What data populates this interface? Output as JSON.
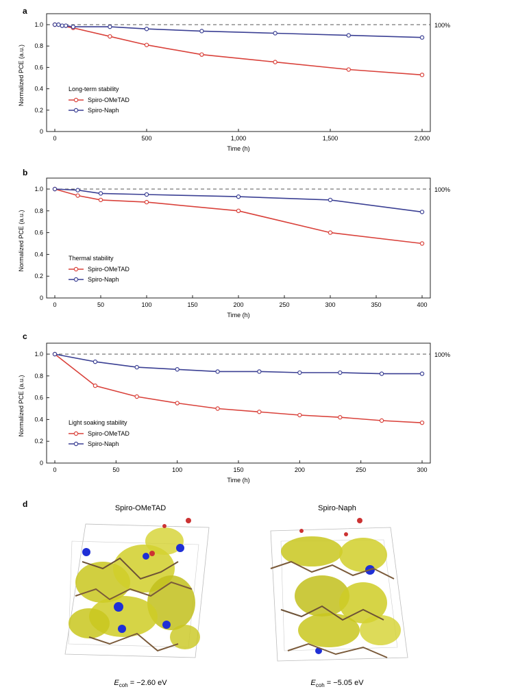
{
  "colors": {
    "spiro_ometad": "#d9413a",
    "spiro_naph": "#3a3f93",
    "axis": "#222222",
    "reference": "#555555",
    "isosurface": "#c9c71e",
    "iso_negative": "#1f2fd6"
  },
  "chart_data": [
    {
      "panel": "a",
      "type": "line",
      "legend_title": "Long-term stability",
      "legend_position": "middle-left",
      "xlabel": "Time (h)",
      "ylabel": "Normalized PCE (a.u.)",
      "xlim": [
        0,
        2000
      ],
      "ylim": [
        0,
        1.0
      ],
      "xticks": [
        0,
        500,
        1000,
        1500,
        2000
      ],
      "xtick_labels": [
        "0",
        "500",
        "1,000",
        "1,500",
        "2,000"
      ],
      "yticks": [
        0,
        0.2,
        0.4,
        0.6,
        0.8,
        1.0
      ],
      "ytick_labels": [
        "0",
        "0.2",
        "0.4",
        "0.6",
        "0.8",
        "1.0"
      ],
      "reference_label": "100%",
      "grid": false,
      "series": [
        {
          "name": "Spiro-OMeTAD",
          "color": "#d9413a",
          "x": [
            0,
            100,
            300,
            500,
            800,
            1200,
            1600,
            2000
          ],
          "y": [
            1.0,
            0.97,
            0.89,
            0.81,
            0.72,
            0.65,
            0.58,
            0.53
          ]
        },
        {
          "name": "Spiro-Naph",
          "color": "#3a3f93",
          "x": [
            0,
            20,
            40,
            60,
            100,
            300,
            500,
            800,
            1200,
            1600,
            2000
          ],
          "y": [
            1.0,
            1.0,
            0.99,
            0.99,
            0.98,
            0.98,
            0.96,
            0.94,
            0.92,
            0.9,
            0.88
          ]
        }
      ]
    },
    {
      "panel": "b",
      "type": "line",
      "legend_title": "Thermal stability",
      "legend_position": "bottom-left",
      "xlabel": "Time (h)",
      "ylabel": "Normalized PCE (a.u.)",
      "xlim": [
        0,
        400
      ],
      "ylim": [
        0,
        1.0
      ],
      "xticks": [
        0,
        50,
        100,
        150,
        200,
        250,
        300,
        350,
        400
      ],
      "xtick_labels": [
        "0",
        "50",
        "100",
        "150",
        "200",
        "250",
        "300",
        "350",
        "400"
      ],
      "yticks": [
        0,
        0.2,
        0.4,
        0.6,
        0.8,
        1.0
      ],
      "ytick_labels": [
        "0",
        "0.2",
        "0.4",
        "0.6",
        "0.8",
        "1.0"
      ],
      "reference_label": "100%",
      "grid": false,
      "series": [
        {
          "name": "Spiro-OMeTAD",
          "color": "#d9413a",
          "x": [
            0,
            25,
            50,
            100,
            200,
            300,
            400
          ],
          "y": [
            1.0,
            0.94,
            0.9,
            0.88,
            0.8,
            0.6,
            0.5
          ]
        },
        {
          "name": "Spiro-Naph",
          "color": "#3a3f93",
          "x": [
            0,
            25,
            50,
            100,
            200,
            300,
            400
          ],
          "y": [
            1.0,
            0.99,
            0.96,
            0.95,
            0.93,
            0.9,
            0.79
          ]
        }
      ]
    },
    {
      "panel": "c",
      "type": "line",
      "legend_title": "Light soaking stability",
      "legend_position": "bottom-left",
      "xlabel": "Time (h)",
      "ylabel": "Normalized PCE (a.u.)",
      "xlim": [
        0,
        300
      ],
      "ylim": [
        0,
        1.0
      ],
      "xticks": [
        0,
        50,
        100,
        150,
        200,
        250,
        300
      ],
      "xtick_labels": [
        "0",
        "50",
        "100",
        "150",
        "200",
        "250",
        "300"
      ],
      "yticks": [
        0,
        0.2,
        0.4,
        0.6,
        0.8,
        1.0
      ],
      "ytick_labels": [
        "0",
        "0.2",
        "0.4",
        "0.6",
        "0.8",
        "1.0"
      ],
      "reference_label": "100%",
      "grid": false,
      "series": [
        {
          "name": "Spiro-OMeTAD",
          "color": "#d9413a",
          "x": [
            0,
            33,
            67,
            100,
            133,
            167,
            200,
            233,
            267,
            300
          ],
          "y": [
            1.0,
            0.71,
            0.61,
            0.55,
            0.5,
            0.47,
            0.44,
            0.42,
            0.39,
            0.37
          ]
        },
        {
          "name": "Spiro-Naph",
          "color": "#3a3f93",
          "x": [
            0,
            33,
            67,
            100,
            133,
            167,
            200,
            233,
            267,
            300
          ],
          "y": [
            1.0,
            0.93,
            0.88,
            0.86,
            0.84,
            0.84,
            0.83,
            0.83,
            0.82,
            0.82
          ]
        }
      ]
    }
  ],
  "panels": {
    "a_label": "a",
    "b_label": "b",
    "c_label": "c",
    "d_label": "d"
  },
  "panel_d": {
    "left_title": "Spiro-OMeTAD",
    "right_title": "Spiro-Naph",
    "left_energy_symbol": "E",
    "left_energy_sub": "coh",
    "left_energy_value": " = −2.60 eV",
    "right_energy_symbol": "E",
    "right_energy_sub": "coh",
    "right_energy_value": " = −5.05 eV"
  }
}
